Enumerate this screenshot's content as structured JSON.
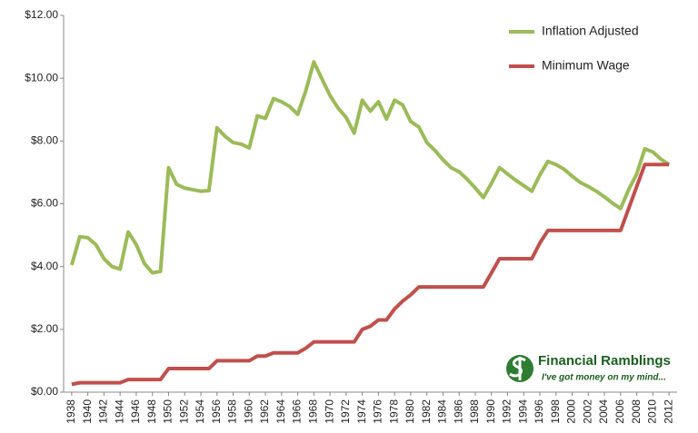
{
  "chart_data": {
    "type": "line",
    "x": [
      1938,
      1939,
      1940,
      1941,
      1942,
      1943,
      1944,
      1945,
      1946,
      1947,
      1948,
      1949,
      1950,
      1951,
      1952,
      1953,
      1954,
      1955,
      1956,
      1957,
      1958,
      1959,
      1960,
      1961,
      1962,
      1963,
      1964,
      1965,
      1966,
      1967,
      1968,
      1969,
      1970,
      1971,
      1972,
      1973,
      1974,
      1975,
      1976,
      1977,
      1978,
      1979,
      1980,
      1981,
      1982,
      1983,
      1984,
      1985,
      1986,
      1987,
      1988,
      1989,
      1990,
      1991,
      1992,
      1993,
      1994,
      1995,
      1996,
      1997,
      1998,
      1999,
      2000,
      2001,
      2002,
      2003,
      2004,
      2005,
      2006,
      2007,
      2008,
      2009,
      2010,
      2011,
      2012
    ],
    "series": [
      {
        "name": "Inflation Adjusted",
        "color": "#9bbb59",
        "values": [
          4.05,
          4.95,
          4.92,
          4.7,
          4.25,
          4.0,
          3.92,
          5.1,
          4.7,
          4.1,
          3.8,
          3.85,
          7.15,
          6.62,
          6.5,
          6.45,
          6.4,
          6.42,
          8.42,
          8.15,
          7.95,
          7.9,
          7.78,
          8.8,
          8.72,
          9.35,
          9.25,
          9.1,
          8.85,
          9.6,
          10.52,
          9.98,
          9.45,
          9.05,
          8.75,
          8.25,
          9.3,
          8.95,
          9.25,
          8.7,
          9.3,
          9.15,
          8.62,
          8.45,
          7.95,
          7.7,
          7.4,
          7.15,
          7.02,
          6.78,
          6.5,
          6.2,
          6.65,
          7.15,
          6.95,
          6.75,
          6.58,
          6.4,
          6.92,
          7.35,
          7.25,
          7.1,
          6.88,
          6.68,
          6.55,
          6.4,
          6.22,
          6.02,
          5.85,
          6.45,
          6.95,
          7.75,
          7.65,
          7.42,
          7.25
        ]
      },
      {
        "name": "Minimum Wage",
        "color": "#c0504d",
        "values": [
          0.25,
          0.3,
          0.3,
          0.3,
          0.3,
          0.3,
          0.3,
          0.4,
          0.4,
          0.4,
          0.4,
          0.4,
          0.75,
          0.75,
          0.75,
          0.75,
          0.75,
          0.75,
          1.0,
          1.0,
          1.0,
          1.0,
          1.0,
          1.15,
          1.15,
          1.25,
          1.25,
          1.25,
          1.25,
          1.4,
          1.6,
          1.6,
          1.6,
          1.6,
          1.6,
          1.6,
          2.0,
          2.1,
          2.3,
          2.3,
          2.65,
          2.9,
          3.1,
          3.35,
          3.35,
          3.35,
          3.35,
          3.35,
          3.35,
          3.35,
          3.35,
          3.35,
          3.8,
          4.25,
          4.25,
          4.25,
          4.25,
          4.25,
          4.75,
          5.15,
          5.15,
          5.15,
          5.15,
          5.15,
          5.15,
          5.15,
          5.15,
          5.15,
          5.15,
          5.85,
          6.55,
          7.25,
          7.25,
          7.25,
          7.25
        ]
      }
    ],
    "xlim": [
      1937,
      2013
    ],
    "xticks": [
      1938,
      1940,
      1942,
      1944,
      1946,
      1948,
      1950,
      1952,
      1954,
      1956,
      1958,
      1960,
      1962,
      1964,
      1966,
      1968,
      1970,
      1972,
      1974,
      1976,
      1978,
      1980,
      1982,
      1984,
      1986,
      1988,
      1990,
      1992,
      1994,
      1996,
      1998,
      2000,
      2002,
      2004,
      2006,
      2008,
      2010,
      2012
    ],
    "ylim": [
      0,
      12
    ],
    "yticks": [
      {
        "value": 0,
        "label": "$0.00"
      },
      {
        "value": 2,
        "label": "$2.00"
      },
      {
        "value": 4,
        "label": "$4.00"
      },
      {
        "value": 6,
        "label": "$6.00"
      },
      {
        "value": 8,
        "label": "$8.00"
      },
      {
        "value": 10,
        "label": "$10.00"
      },
      {
        "value": 12,
        "label": "$12.00"
      }
    ],
    "grid": false,
    "legend": "top-right",
    "annotations": [
      "Financial Ramblings",
      "I've got money on my mind..."
    ]
  }
}
